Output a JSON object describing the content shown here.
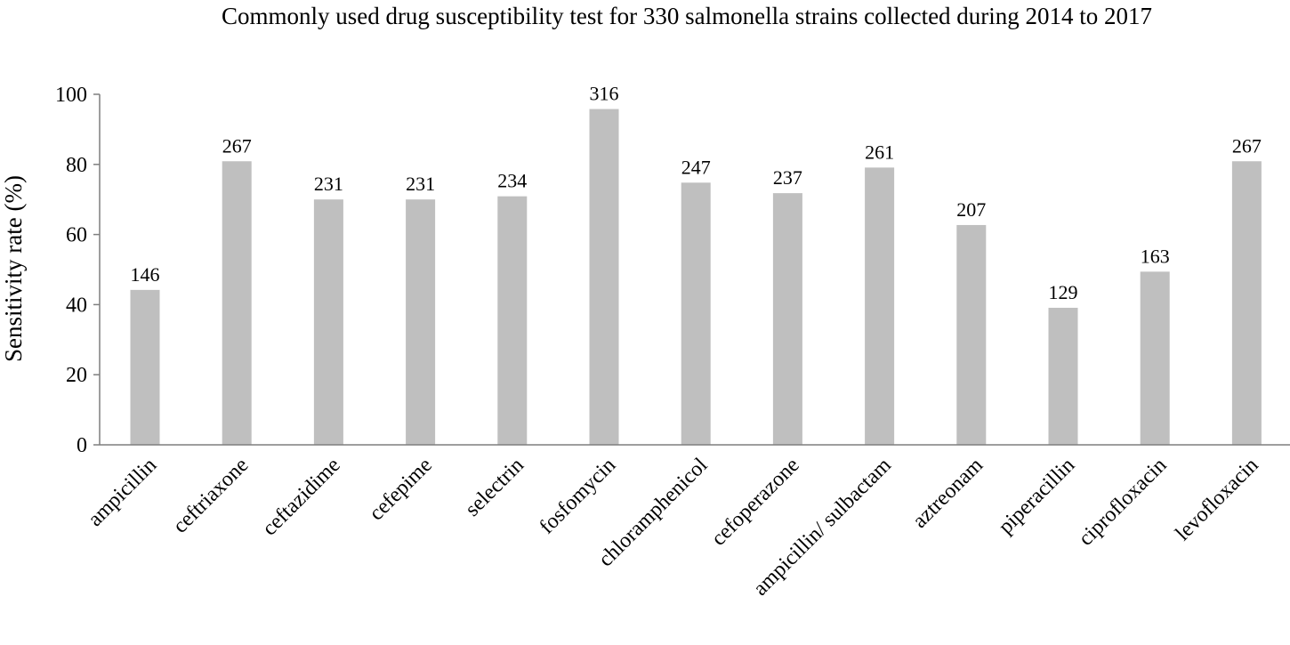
{
  "chart_data": {
    "type": "bar",
    "title": "Commonly used drug susceptibility test for 330 salmonella strains collected during 2014 to 2017",
    "xlabel": "",
    "ylabel": "Sensitivity rate (%)",
    "ylim": [
      0,
      100
    ],
    "yticks": [
      0,
      20,
      40,
      60,
      80,
      100
    ],
    "grid": false,
    "legend": "none",
    "bar_color": "#bfbfbf",
    "axis_color": "#7f7f7f",
    "categories": [
      "ampicillin",
      "ceftriaxone",
      "ceftazidime",
      "cefepime",
      "selectrin",
      "fosfomycin",
      "chloramphenicol",
      "cefoperazone",
      "ampicillin/ sulbactam",
      "aztreonam",
      "piperacillin",
      "ciprofloxacin",
      "levofloxacin"
    ],
    "values": [
      44.2,
      80.9,
      70.0,
      70.0,
      70.9,
      95.8,
      74.8,
      71.8,
      79.1,
      62.7,
      39.1,
      49.4,
      80.9
    ],
    "data_labels": [
      "146",
      "267",
      "231",
      "231",
      "234",
      "316",
      "247",
      "237",
      "261",
      "207",
      "129",
      "163",
      "267"
    ]
  }
}
